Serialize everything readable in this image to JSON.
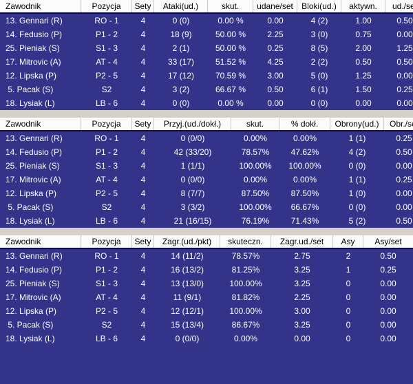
{
  "colors": {
    "body_bg": "#333389",
    "header_bg": "#FBFBFB",
    "gap_bg": "#D5D1CA",
    "header_border": "#0B0B55",
    "header_separator": "#C9C9C9",
    "header_text": "#000000",
    "body_text": "#FFFFFF"
  },
  "tables": [
    {
      "id": "attack-block-stats",
      "columns": [
        {
          "key": "zawodnik",
          "label": "Zawodnik",
          "width": 118,
          "align": "left"
        },
        {
          "key": "pozycja",
          "label": "Pozycja",
          "width": 74
        },
        {
          "key": "sety",
          "label": "Sety",
          "width": 32
        },
        {
          "key": "ataki-ud",
          "label": "Ataki(ud.)",
          "width": 78
        },
        {
          "key": "skut",
          "label": "skut.",
          "width": 66
        },
        {
          "key": "udane-set",
          "label": "udane/set",
          "width": 64
        },
        {
          "key": "bloki-ud",
          "label": "Bloki(ud.)",
          "width": 64
        },
        {
          "key": "aktywn",
          "label": "aktywn.",
          "width": 64
        },
        {
          "key": "ud-set",
          "label": "ud./set",
          "width": 56
        }
      ],
      "rows": [
        [
          "13. Gennari (R)",
          "RO - 1",
          "4",
          "0 (0)",
          "0.00 %",
          "0.00",
          "4 (2)",
          "1.00",
          "0.50"
        ],
        [
          "14. Fedusio (P)",
          "P1 - 2",
          "4",
          "18 (9)",
          "50.00 %",
          "2.25",
          "3 (0)",
          "0.75",
          "0.00"
        ],
        [
          "25. Pieniak (S)",
          "S1 - 3",
          "4",
          "2 (1)",
          "50.00 %",
          "0.25",
          "8 (5)",
          "2.00",
          "1.25"
        ],
        [
          "17. Mitrovic (A)",
          "AT - 4",
          "4",
          "33 (17)",
          "51.52 %",
          "4.25",
          "2 (2)",
          "0.50",
          "0.50"
        ],
        [
          "12. Lipska (P)",
          "P2 - 5",
          "4",
          "17 (12)",
          "70.59 %",
          "3.00",
          "5 (0)",
          "1.25",
          "0.00"
        ],
        [
          " 5. Pacak (S)",
          "S2",
          "4",
          "3 (2)",
          "66.67 %",
          "0.50",
          "6 (1)",
          "1.50",
          "0.25"
        ],
        [
          "18. Lysiak (L)",
          "LB - 6",
          "4",
          "0 (0)",
          "0.00 %",
          "0.00",
          "0 (0)",
          "0.00",
          "0.00"
        ]
      ]
    },
    {
      "id": "reception-defense-stats",
      "columns": [
        {
          "key": "zawodnik",
          "label": "Zawodnik",
          "width": 118,
          "align": "left"
        },
        {
          "key": "pozycja",
          "label": "Pozycja",
          "width": 74
        },
        {
          "key": "sety",
          "label": "Sety",
          "width": 32
        },
        {
          "key": "przyj-ud-dokl",
          "label": "Przyj.(ud./dokł.)",
          "width": 112
        },
        {
          "key": "skut",
          "label": "skut.",
          "width": 70
        },
        {
          "key": "proc-dokl",
          "label": "% dokł.",
          "width": 74
        },
        {
          "key": "obrony-ud",
          "label": "Obrony(ud.)",
          "width": 78
        },
        {
          "key": "obr-set",
          "label": "Obr./set",
          "width": 58
        }
      ],
      "rows": [
        [
          "13. Gennari (R)",
          "RO - 1",
          "4",
          "0 (0/0)",
          "0.00%",
          "0.00%",
          "1 (1)",
          "0.25"
        ],
        [
          "14. Fedusio (P)",
          "P1 - 2",
          "4",
          "42 (33/20)",
          "78.57%",
          "47.62%",
          "4 (2)",
          "0.50"
        ],
        [
          "25. Pieniak (S)",
          "S1 - 3",
          "4",
          "1 (1/1)",
          "100.00%",
          "100.00%",
          "0 (0)",
          "0.00"
        ],
        [
          "17. Mitrovic (A)",
          "AT - 4",
          "4",
          "0 (0/0)",
          "0.00%",
          "0.00%",
          "1 (1)",
          "0.25"
        ],
        [
          "12. Lipska (P)",
          "P2 - 5",
          "4",
          "8 (7/7)",
          "87.50%",
          "87.50%",
          "1 (0)",
          "0.00"
        ],
        [
          " 5. Pacak (S)",
          "S2",
          "4",
          "3 (3/2)",
          "100.00%",
          "66.67%",
          "0 (0)",
          "0.00"
        ],
        [
          "18. Lysiak (L)",
          "LB - 6",
          "4",
          "21 (16/15)",
          "76.19%",
          "71.43%",
          "5 (2)",
          "0.50"
        ]
      ]
    },
    {
      "id": "serve-stats",
      "columns": [
        {
          "key": "zawodnik",
          "label": "Zawodnik",
          "width": 118,
          "align": "left"
        },
        {
          "key": "pozycja",
          "label": "Pozycja",
          "width": 74
        },
        {
          "key": "sety",
          "label": "Sety",
          "width": 32
        },
        {
          "key": "zagr-ud-pkt",
          "label": "Zagr.(ud./pkt)",
          "width": 96
        },
        {
          "key": "skuteczn",
          "label": "skuteczn.",
          "width": 74
        },
        {
          "key": "zagr-ud-set",
          "label": "Zagr.ud./set",
          "width": 90
        },
        {
          "key": "asy",
          "label": "Asy",
          "width": 44
        },
        {
          "key": "asy-set",
          "label": "Asy/set",
          "width": 72
        }
      ],
      "rows": [
        [
          "13. Gennari (R)",
          "RO - 1",
          "4",
          "14 (11/2)",
          "78.57%",
          "2.75",
          "2",
          "0.50"
        ],
        [
          "14. Fedusio (P)",
          "P1 - 2",
          "4",
          "16 (13/2)",
          "81.25%",
          "3.25",
          "1",
          "0.25"
        ],
        [
          "25. Pieniak (S)",
          "S1 - 3",
          "4",
          "13 (13/0)",
          "100.00%",
          "3.25",
          "0",
          "0.00"
        ],
        [
          "17. Mitrovic (A)",
          "AT - 4",
          "4",
          "11 (9/1)",
          "81.82%",
          "2.25",
          "0",
          "0.00"
        ],
        [
          "12. Lipska (P)",
          "P2 - 5",
          "4",
          "12 (12/1)",
          "100.00%",
          "3.00",
          "0",
          "0.00"
        ],
        [
          " 5. Pacak (S)",
          "S2",
          "4",
          "15 (13/4)",
          "86.67%",
          "3.25",
          "0",
          "0.00"
        ],
        [
          "18. Lysiak (L)",
          "LB - 6",
          "4",
          "0 (0/0)",
          "0.00%",
          "0.00",
          "0",
          "0.00"
        ]
      ]
    }
  ]
}
